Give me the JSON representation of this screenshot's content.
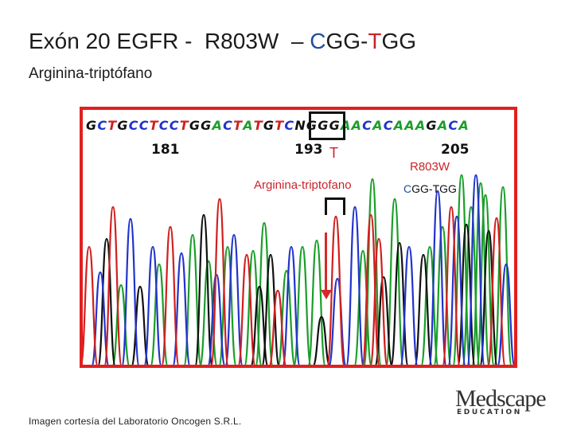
{
  "title": {
    "prefix": "Exón 20 EGFR -  R803W  – ",
    "codon_c": "C",
    "codon_gg1": "GG-",
    "codon_t": "T",
    "codon_gg2": "GG"
  },
  "subtitle": "Arginina-triptófano",
  "chromatogram": {
    "sequence": [
      "G",
      "C",
      "T",
      "G",
      "C",
      "C",
      "T",
      "C",
      "C",
      "T",
      "G",
      "G",
      "A",
      "C",
      "T",
      "A",
      "T",
      "G",
      "T",
      "C",
      "N",
      "G",
      "G",
      "G",
      "A",
      "A",
      "C",
      "A",
      "C",
      "A",
      "A",
      "A",
      "G",
      "A",
      "C",
      "A"
    ],
    "base_colors": {
      "A": "#1a9e2a",
      "C": "#2233cc",
      "G": "#111111",
      "T": "#d11f1f",
      "N": "#111111"
    },
    "positions": {
      "p181": "181",
      "p193": "193",
      "p205": "205"
    },
    "mutation_letter": "T",
    "amino_acid_label": "Arginina-triptofano",
    "side_mutation": "R803W",
    "side_codon": {
      "c": "C",
      "rest": "GG-TGG"
    }
  },
  "credit": "Imagen cortesía del Laboratorio Oncogen S.R.L.",
  "logo": {
    "main": "Medscape",
    "sub": "EDUCATION"
  }
}
